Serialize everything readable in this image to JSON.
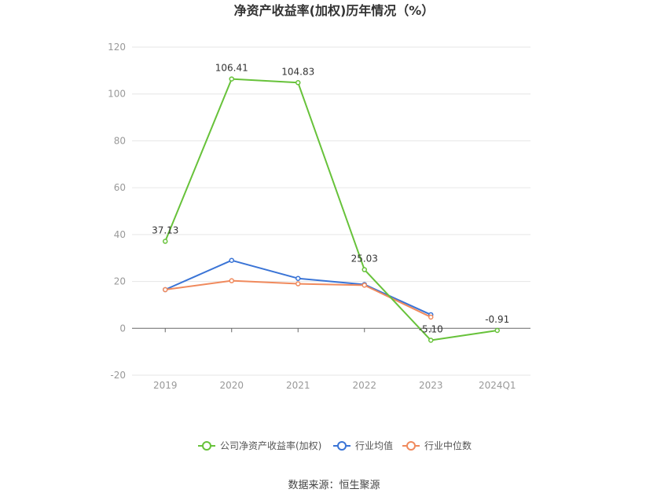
{
  "chart_data": {
    "type": "line",
    "title": "净资产收益率(加权)历年情况（%）",
    "categories": [
      "2019",
      "2020",
      "2021",
      "2022",
      "2023",
      "2024Q1"
    ],
    "ylim": [
      -20,
      120
    ],
    "yticks": [
      -20,
      0,
      20,
      40,
      60,
      80,
      100,
      120
    ],
    "grid": true,
    "legend_position": "bottom",
    "series": [
      {
        "name": "公司净资产收益率(加权)",
        "color": "#67c23a",
        "values": [
          37.13,
          106.41,
          104.83,
          25.03,
          -5.1,
          -0.91
        ],
        "labels": [
          "37.13",
          "106.41",
          "104.83",
          "25.03",
          "-5.10",
          "-0.91"
        ]
      },
      {
        "name": "行业均值",
        "color": "#3a74d6",
        "values": [
          16.5,
          29.0,
          21.3,
          18.7,
          5.8,
          null
        ]
      },
      {
        "name": "行业中位数",
        "color": "#f08a5d",
        "values": [
          16.5,
          20.3,
          19.0,
          18.4,
          4.8,
          null
        ]
      }
    ]
  },
  "source": "数据来源：恒生聚源"
}
